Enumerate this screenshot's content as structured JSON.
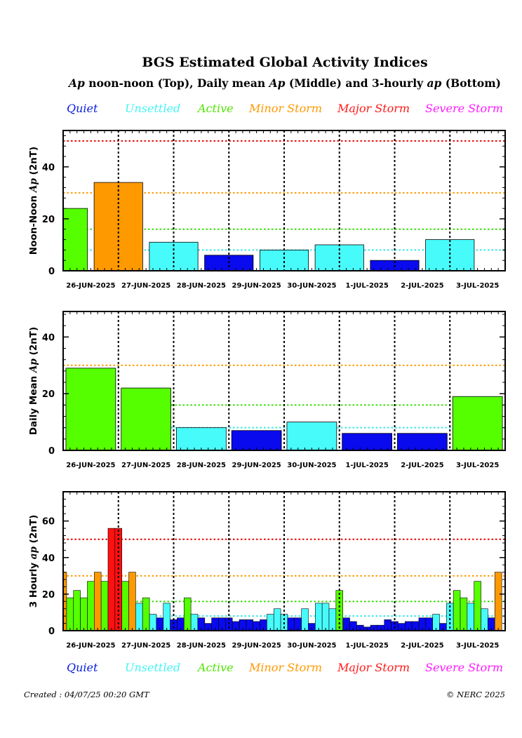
{
  "title": "BGS Estimated Global Activity Indices",
  "subtitle": {
    "prefix_symbol": "Ap",
    "part1": " noon-noon (Top), Daily mean ",
    "mid_symbol": "Ap",
    "part2": " (Middle) and 3-hourly ",
    "end_symbol": "ap",
    "part3": " (Bottom)"
  },
  "legend": [
    {
      "label": "Quiet",
      "color": "#0a1edc"
    },
    {
      "label": "Unsettled",
      "color": "#45f5f5"
    },
    {
      "label": "Active",
      "color": "#4fe600"
    },
    {
      "label": "Minor Storm",
      "color": "#ff9900"
    },
    {
      "label": "Major Storm",
      "color": "#ff1a1a"
    },
    {
      "label": "Severe Storm",
      "color": "#ff1aff"
    }
  ],
  "colors": {
    "quiet": "#0a0aee",
    "unsettled": "#48fbfb",
    "active": "#55ff00",
    "minor": "#ff9900",
    "major": "#ff1111",
    "severe": "#ff00ff",
    "line_unsettled": "#33e6e6",
    "line_active": "#33dd00",
    "line_minor": "#ff9900",
    "line_major": "#ee0000"
  },
  "dates": [
    "26-JUN-2025",
    "27-JUN-2025",
    "28-JUN-2025",
    "29-JUN-2025",
    "30-JUN-2025",
    "1-JUL-2025",
    "2-JUL-2025",
    "3-JUL-2025"
  ],
  "chart_data": [
    {
      "type": "bar",
      "id": "noon-noon",
      "ylabel_prefix": "Noon-Noon ",
      "ylabel_symbol": "Ap",
      "ylabel_suffix": " (2nT)",
      "ylim": [
        0,
        54
      ],
      "yticks": [
        0,
        20,
        40
      ],
      "thresholds": [
        8,
        16,
        30,
        50
      ],
      "bars": [
        {
          "x": [
            0.0,
            0.44
          ],
          "value": 24,
          "level": "active"
        },
        {
          "x": [
            0.56,
            1.44
          ],
          "value": 34,
          "level": "minor"
        },
        {
          "x": [
            1.56,
            2.44
          ],
          "value": 11,
          "level": "unsettled"
        },
        {
          "x": [
            2.56,
            3.44
          ],
          "value": 6,
          "level": "quiet"
        },
        {
          "x": [
            3.56,
            4.44
          ],
          "value": 8,
          "level": "unsettled"
        },
        {
          "x": [
            4.56,
            5.44
          ],
          "value": 10,
          "level": "unsettled"
        },
        {
          "x": [
            5.56,
            6.44
          ],
          "value": 4,
          "level": "quiet"
        },
        {
          "x": [
            6.56,
            7.44
          ],
          "value": 12,
          "level": "unsettled"
        }
      ]
    },
    {
      "type": "bar",
      "id": "daily-mean",
      "ylabel_prefix": "Daily Mean ",
      "ylabel_symbol": "Ap",
      "ylabel_suffix": " (2nT)",
      "ylim": [
        0,
        49
      ],
      "yticks": [
        0,
        20,
        40
      ],
      "thresholds": [
        8,
        16,
        30
      ],
      "bars": [
        {
          "x": [
            0.05,
            0.95
          ],
          "value": 29,
          "level": "active"
        },
        {
          "x": [
            1.05,
            1.95
          ],
          "value": 22,
          "level": "active"
        },
        {
          "x": [
            2.05,
            2.95
          ],
          "value": 8,
          "level": "unsettled"
        },
        {
          "x": [
            3.05,
            3.95
          ],
          "value": 7,
          "level": "quiet"
        },
        {
          "x": [
            4.05,
            4.95
          ],
          "value": 10,
          "level": "unsettled"
        },
        {
          "x": [
            5.05,
            5.95
          ],
          "value": 6,
          "level": "quiet"
        },
        {
          "x": [
            6.05,
            6.95
          ],
          "value": 6,
          "level": "quiet"
        },
        {
          "x": [
            7.05,
            7.95
          ],
          "value": 19,
          "level": "active"
        }
      ]
    },
    {
      "type": "bar",
      "id": "three-hourly",
      "ylabel_prefix": "3 Hourly ",
      "ylabel_symbol": "ap",
      "ylabel_suffix": " (2nT)",
      "ylim": [
        0,
        76
      ],
      "yticks": [
        0,
        20,
        40,
        60
      ],
      "thresholds": [
        8,
        16,
        30,
        50
      ],
      "start_offset": -0.0625,
      "bar_width": 0.125,
      "values": [
        32,
        18,
        22,
        18,
        27,
        32,
        27,
        56,
        56,
        27,
        32,
        15,
        18,
        9,
        7,
        15,
        6,
        7,
        18,
        9,
        7,
        4,
        7,
        7,
        7,
        5,
        6,
        6,
        5,
        6,
        9,
        12,
        9,
        7,
        7,
        12,
        4,
        15,
        15,
        12,
        22,
        7,
        5,
        3,
        2,
        3,
        3,
        6,
        5,
        4,
        5,
        5,
        7,
        7,
        9,
        4,
        15,
        22,
        18,
        15,
        27,
        12,
        7,
        32
      ],
      "levels": [
        "minor",
        "active",
        "active",
        "active",
        "active",
        "minor",
        "active",
        "major",
        "major",
        "active",
        "minor",
        "unsettled",
        "active",
        "unsettled",
        "quiet",
        "unsettled",
        "quiet",
        "quiet",
        "active",
        "unsettled",
        "quiet",
        "quiet",
        "quiet",
        "quiet",
        "quiet",
        "quiet",
        "quiet",
        "quiet",
        "quiet",
        "quiet",
        "unsettled",
        "unsettled",
        "unsettled",
        "quiet",
        "quiet",
        "unsettled",
        "quiet",
        "unsettled",
        "unsettled",
        "unsettled",
        "active",
        "quiet",
        "quiet",
        "quiet",
        "quiet",
        "quiet",
        "quiet",
        "quiet",
        "quiet",
        "quiet",
        "quiet",
        "quiet",
        "quiet",
        "quiet",
        "unsettled",
        "quiet",
        "unsettled",
        "active",
        "active",
        "unsettled",
        "active",
        "unsettled",
        "quiet",
        "minor"
      ]
    }
  ],
  "footer": {
    "created": "Created : 04/07/25 00:20 GMT",
    "copyright": "© NERC 2025"
  }
}
